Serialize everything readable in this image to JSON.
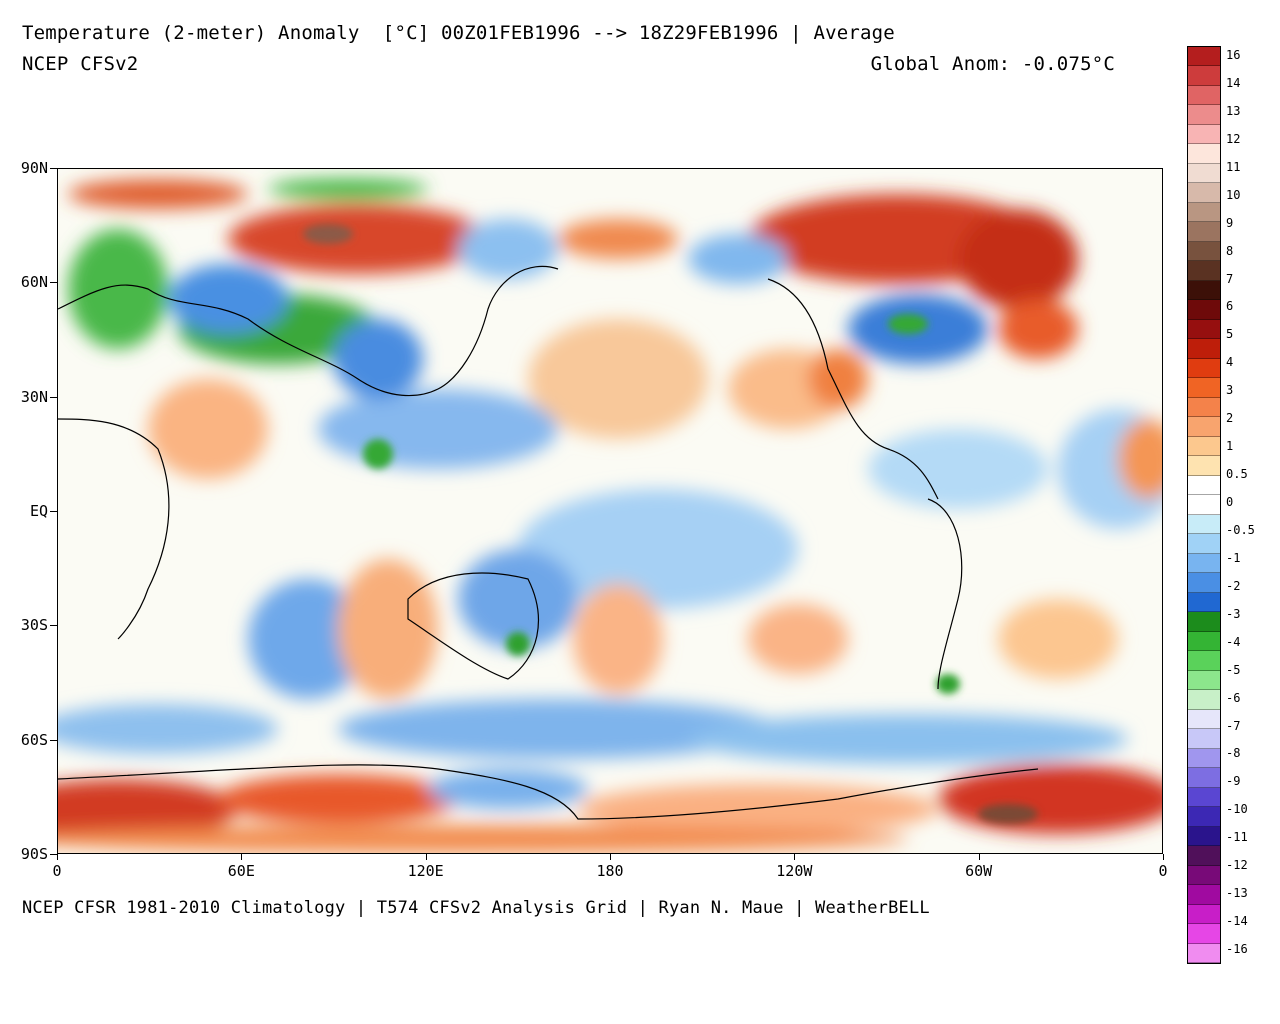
{
  "header": {
    "title": "Temperature (2-meter) Anomaly  [°C] 00Z01FEB1996 --> 18Z29FEB1996 | Average",
    "model": "NCEP CFSv2",
    "global_anom": "Global Anom: -0.075°C"
  },
  "footer": {
    "text": "NCEP CFSR 1981-2010 Climatology | T574 CFSv2 Analysis Grid | Ryan N. Maue | WeatherBELL"
  },
  "axes": {
    "y_ticks": [
      "90N",
      "60N",
      "30N",
      "EQ",
      "30S",
      "60S",
      "90S"
    ],
    "x_ticks": [
      "0",
      "60E",
      "120E",
      "180",
      "120W",
      "60W",
      "0"
    ]
  },
  "colorbar": {
    "labels": [
      "16",
      "14",
      "13",
      "12",
      "11",
      "10",
      "9",
      "8",
      "7",
      "6",
      "5",
      "4",
      "3",
      "2",
      "1",
      "0.5",
      "0",
      "-0.5",
      "-1",
      "-2",
      "-3",
      "-4",
      "-5",
      "-6",
      "-7",
      "-8",
      "-9",
      "-10",
      "-11",
      "-12",
      "-13",
      "-14",
      "-16"
    ],
    "colors": [
      "#b41e1e",
      "#cd3c3c",
      "#e06464",
      "#ec8c8c",
      "#f8b4b4",
      "#fde6dc",
      "#f0dcd2",
      "#d7b9aa",
      "#b99682",
      "#9b7460",
      "#78523e",
      "#5a3222",
      "#3c1008",
      "#6e0a0a",
      "#960f0f",
      "#be1e0a",
      "#e03c10",
      "#f06424",
      "#f4824a",
      "#f8a46e",
      "#fcc88e",
      "#fee3b0",
      "#ffffff",
      "#ffffff",
      "#c8ecf8",
      "#a0d2f6",
      "#78b4f0",
      "#4a8fe4",
      "#2068d2",
      "#1c8c1c",
      "#34b434",
      "#5ad25a",
      "#8ce68c",
      "#c8f0c8",
      "#e6e6fa",
      "#c8c8f8",
      "#a096ee",
      "#7d6ee2",
      "#5a46d2",
      "#3c28b4",
      "#2a148c",
      "#50105a",
      "#780a78",
      "#a00aa0",
      "#c81ec8",
      "#e646e6",
      "#f08cf0"
    ]
  },
  "map": {
    "title": "Temperature anomaly field"
  }
}
